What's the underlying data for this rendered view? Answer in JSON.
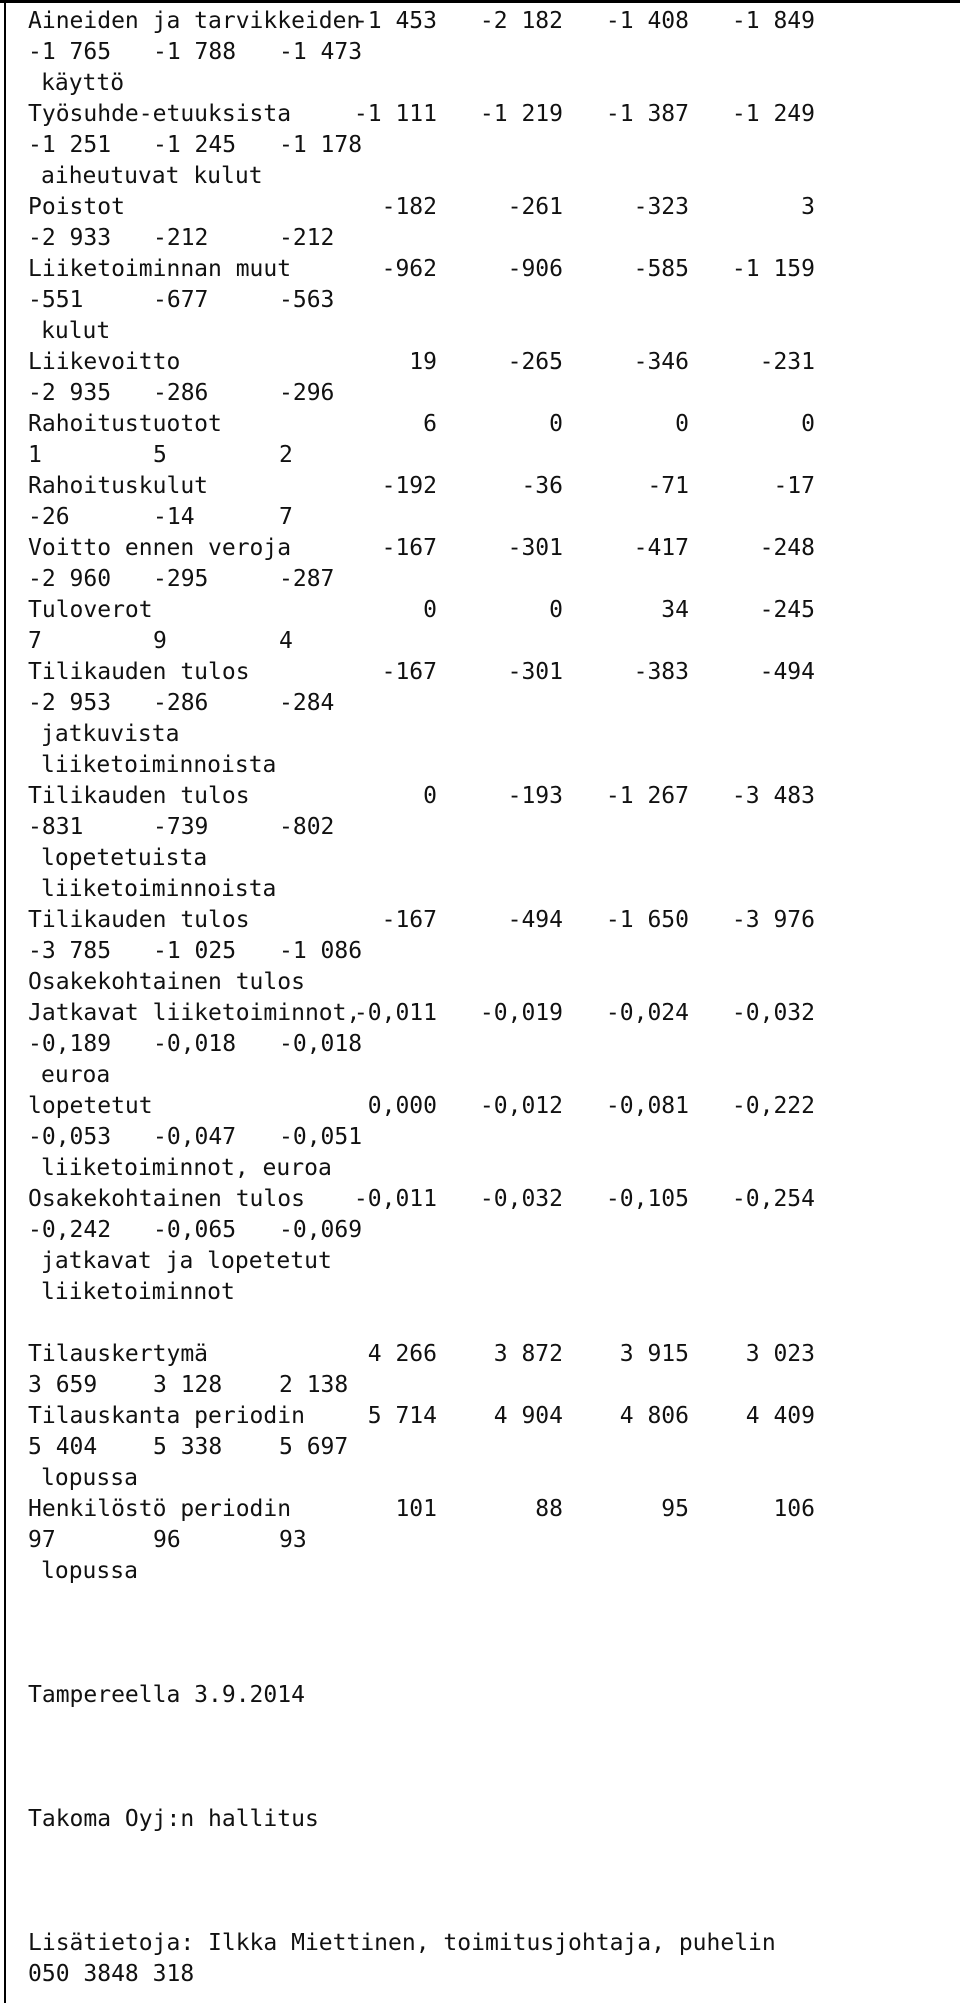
{
  "rows": [
    {
      "label": "Aineiden ja tarvikkeiden",
      "values": [
        "-1 453",
        "-2 182",
        "-1 408",
        "-1 849"
      ],
      "extra": [
        "-1 765",
        "-1 788",
        "-1 473"
      ],
      "cont": [
        "käyttö"
      ]
    },
    {
      "label": "Työsuhde-etuuksista",
      "values": [
        "-1 111",
        "-1 219",
        "-1 387",
        "-1 249"
      ],
      "extra": [
        "-1 251",
        "-1 245",
        "-1 178"
      ],
      "cont": [
        "aiheutuvat kulut"
      ]
    },
    {
      "label": "Poistot",
      "values": [
        "-182",
        "-261",
        "-323",
        "3"
      ],
      "extra": [
        "-2 933",
        "-212",
        "-212"
      ],
      "cont": []
    },
    {
      "label": "Liiketoiminnan muut",
      "values": [
        "-962",
        "-906",
        "-585",
        "-1 159"
      ],
      "extra": [
        "-551",
        "-677",
        "-563"
      ],
      "cont": [
        "kulut"
      ]
    },
    {
      "label": "Liikevoitto",
      "values": [
        "19",
        "-265",
        "-346",
        "-231"
      ],
      "extra": [
        "-2 935",
        "-286",
        "-296"
      ],
      "cont": []
    },
    {
      "label": "Rahoitustuotot",
      "values": [
        "6",
        "0",
        "0",
        "0"
      ],
      "extra": [
        "1",
        "5",
        "2"
      ],
      "cont": []
    },
    {
      "label": "Rahoituskulut",
      "values": [
        "-192",
        "-36",
        "-71",
        "-17"
      ],
      "extra": [
        "-26",
        "-14",
        "7"
      ],
      "cont": []
    },
    {
      "label": "Voitto ennen veroja",
      "values": [
        "-167",
        "-301",
        "-417",
        "-248"
      ],
      "extra": [
        "-2 960",
        "-295",
        "-287"
      ],
      "cont": []
    },
    {
      "label": "Tuloverot",
      "values": [
        "0",
        "0",
        "34",
        "-245"
      ],
      "extra": [
        "7",
        "9",
        "4"
      ],
      "cont": []
    },
    {
      "label": "Tilikauden tulos",
      "values": [
        "-167",
        "-301",
        "-383",
        "-494"
      ],
      "extra": [
        "-2 953",
        "-286",
        "-284"
      ],
      "cont": [
        "jatkuvista",
        "liiketoiminnoista"
      ]
    },
    {
      "label": "Tilikauden tulos",
      "values": [
        "0",
        "-193",
        "-1 267",
        "-3 483"
      ],
      "extra": [
        "-831",
        "-739",
        "-802"
      ],
      "cont": [
        "lopetetuista",
        "liiketoiminnoista"
      ]
    },
    {
      "label": "Tilikauden tulos",
      "values": [
        "-167",
        "-494",
        "-1 650",
        "-3 976"
      ],
      "extra": [
        "-3 785",
        "-1 025",
        "-1 086"
      ],
      "cont": []
    }
  ],
  "eps_heading": "Osakekohtainen tulos",
  "eps_rows": [
    {
      "label": "Jatkavat liiketoiminnot,",
      "values": [
        "-0,011",
        "-0,019",
        "-0,024",
        "-0,032"
      ],
      "extra": [
        "-0,189",
        "-0,018",
        "-0,018"
      ],
      "cont": [
        "euroa"
      ]
    },
    {
      "label": "lopetetut",
      "values": [
        "0,000",
        "-0,012",
        "-0,081",
        "-0,222"
      ],
      "extra": [
        "-0,053",
        "-0,047",
        "-0,051"
      ],
      "cont": [
        "liiketoiminnot, euroa"
      ]
    },
    {
      "label": "Osakekohtainen tulos",
      "values": [
        "-0,011",
        "-0,032",
        "-0,105",
        "-0,254"
      ],
      "extra": [
        "-0,242",
        "-0,065",
        "-0,069"
      ],
      "cont": [
        "jatkavat ja lopetetut",
        "liiketoiminnot"
      ]
    }
  ],
  "order_rows": [
    {
      "label": "Tilauskertymä",
      "values": [
        "4 266",
        "3 872",
        "3 915",
        "3 023"
      ],
      "extra": [
        "3 659",
        "3 128",
        "2 138"
      ],
      "cont": []
    },
    {
      "label": "Tilauskanta periodin",
      "values": [
        "5 714",
        "4 904",
        "4 806",
        "4 409"
      ],
      "extra": [
        "5 404",
        "5 338",
        "5 697"
      ],
      "cont": [
        "lopussa"
      ]
    },
    {
      "label": "Henkilöstö periodin",
      "values": [
        "101",
        "88",
        "95",
        "106"
      ],
      "extra": [
        "97",
        "96",
        "93"
      ],
      "cont": [
        "lopussa"
      ]
    }
  ],
  "footer": {
    "place_date": "Tampereella 3.9.2014",
    "board": "Takoma Oyj:n hallitus",
    "contact_line1": "Lisätietoja: Ilkka Miettinen, toimitusjohtaja, puhelin",
    "contact_line2": "050 3848 318"
  }
}
